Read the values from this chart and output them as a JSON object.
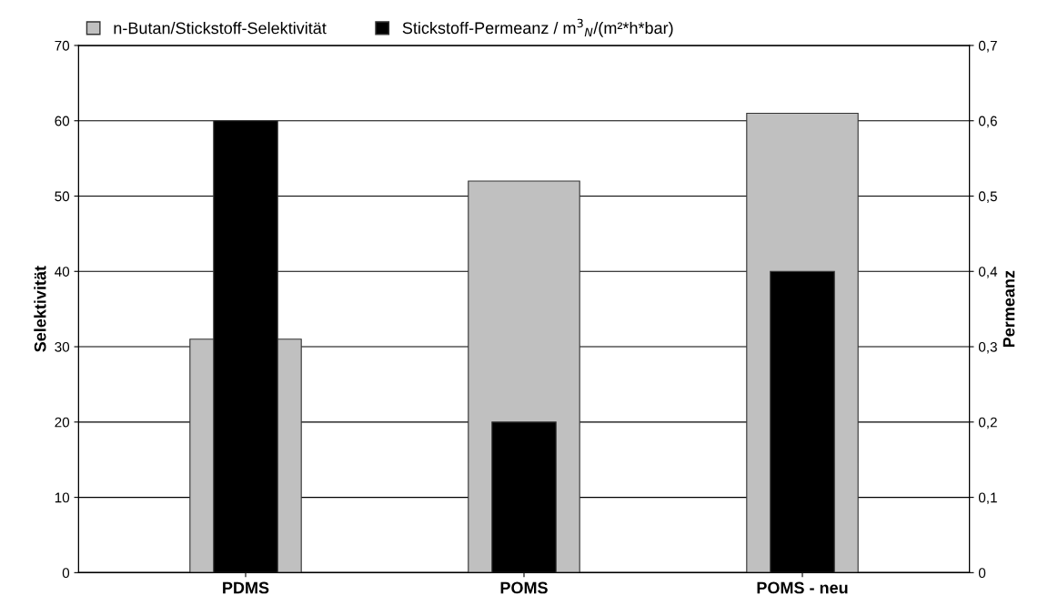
{
  "chart_data": {
    "type": "bar",
    "categories": [
      "PDMS",
      "POMS",
      "POMS - neu"
    ],
    "series": [
      {
        "name": "n-Butan/Stickstoff-Selektivität",
        "color": "#c0c0c0",
        "values": [
          31,
          52,
          61
        ]
      },
      {
        "name": "Stickstoff-Permeanz / m$^{3}$$_{N}$/(m²*h*bar)",
        "color": "#000000",
        "values": [
          0.6,
          0.2,
          0.4
        ],
        "axis": "y2"
      }
    ],
    "ylabel": "Selektivität",
    "y2label": "Permeanz",
    "ylim": [
      0,
      70
    ],
    "yticks": [
      0,
      10,
      20,
      30,
      40,
      50,
      60,
      70
    ],
    "y2lim": [
      0,
      0.7
    ],
    "y2ticks": [
      {
        "value": 0,
        "label": "0"
      },
      {
        "value": 0.1,
        "label": "0,1"
      },
      {
        "value": 0.2,
        "label": "0,2"
      },
      {
        "value": 0.3,
        "label": "0,3"
      },
      {
        "value": 0.4,
        "label": "0,4"
      },
      {
        "value": 0.5,
        "label": "0,5"
      },
      {
        "value": 0.6,
        "label": "0,6"
      },
      {
        "value": 0.7,
        "label": "0,7"
      }
    ],
    "grid": "y",
    "legend": "top"
  }
}
